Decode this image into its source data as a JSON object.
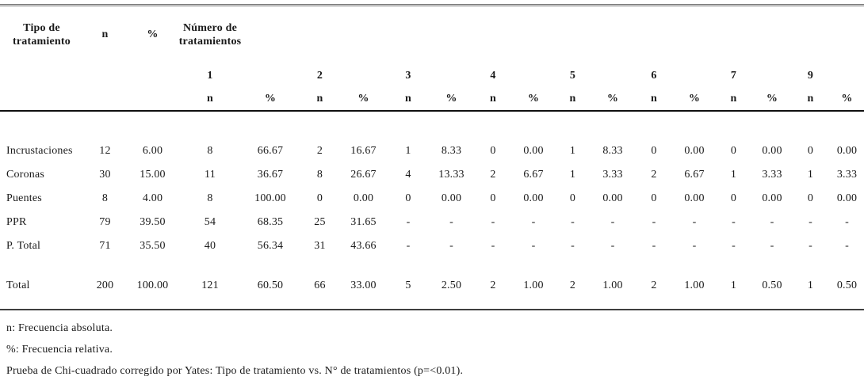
{
  "table": {
    "header": {
      "col_tipo": "Tipo de tratamiento",
      "col_n": "n",
      "col_pct": "%",
      "col_numero": "Número de tratamientos",
      "groups": [
        "1",
        "2",
        "3",
        "4",
        "5",
        "6",
        "7",
        "9"
      ],
      "sub_n": "n",
      "sub_pct": "%"
    },
    "rows": [
      {
        "label": "Incrustaciones",
        "n": "12",
        "pct": "6.00",
        "cells": [
          "8",
          "66.67",
          "2",
          "16.67",
          "1",
          "8.33",
          "0",
          "0.00",
          "1",
          "8.33",
          "0",
          "0.00",
          "0",
          "0.00",
          "0",
          "0.00"
        ]
      },
      {
        "label": "Coronas",
        "n": "30",
        "pct": "15.00",
        "cells": [
          "11",
          "36.67",
          "8",
          "26.67",
          "4",
          "13.33",
          "2",
          "6.67",
          "1",
          "3.33",
          "2",
          "6.67",
          "1",
          "3.33",
          "1",
          "3.33"
        ]
      },
      {
        "label": "Puentes",
        "n": "8",
        "pct": "4.00",
        "cells": [
          "8",
          "100.00",
          "0",
          "0.00",
          "0",
          "0.00",
          "0",
          "0.00",
          "0",
          "0.00",
          "0",
          "0.00",
          "0",
          "0.00",
          "0",
          "0.00"
        ]
      },
      {
        "label": "PPR",
        "n": "79",
        "pct": "39.50",
        "cells": [
          "54",
          "68.35",
          "25",
          "31.65",
          "-",
          "-",
          "-",
          "-",
          "-",
          "-",
          "-",
          "-",
          "-",
          "-",
          "-",
          "-"
        ]
      },
      {
        "label": "P. Total",
        "n": "71",
        "pct": "35.50",
        "cells": [
          "40",
          "56.34",
          "31",
          "43.66",
          "-",
          "-",
          "-",
          "-",
          "-",
          "-",
          "-",
          "-",
          "-",
          "-",
          "-",
          "-"
        ]
      }
    ],
    "total_row": {
      "label": "Total",
      "n": "200",
      "pct": "100.00",
      "cells": [
        "121",
        "60.50",
        "66",
        "33.00",
        "5",
        "2.50",
        "2",
        "1.00",
        "2",
        "1.00",
        "2",
        "1.00",
        "1",
        "0.50",
        "1",
        "0.50"
      ]
    }
  },
  "footnotes": [
    "n: Frecuencia absoluta.",
    "%: Frecuencia relativa.",
    "Prueba de Chi-cuadrado corregido por Yates: Tipo de tratamiento vs. N° de tratamientos (p=<0.01)."
  ]
}
